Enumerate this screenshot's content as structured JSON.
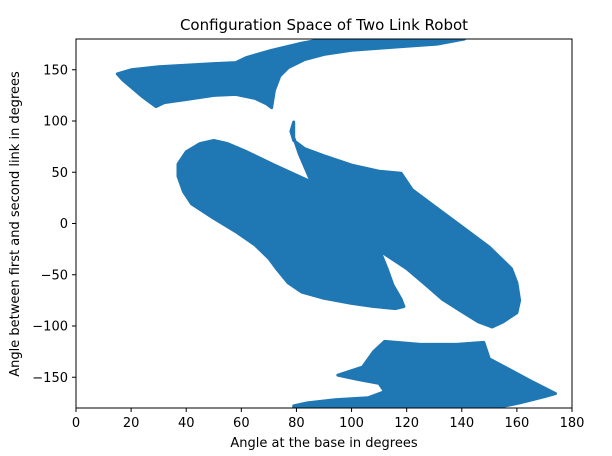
{
  "chart_data": {
    "type": "scatter",
    "title": "Configuration Space of Two Link Robot",
    "xlabel": "Angle at the base in degrees",
    "ylabel": "Angle between first and second link in degrees",
    "xlim": [
      0,
      180
    ],
    "ylim": [
      -180,
      180
    ],
    "xticks": [
      0,
      20,
      40,
      60,
      80,
      100,
      120,
      140,
      160,
      180
    ],
    "yticks": [
      -150,
      -100,
      -50,
      0,
      50,
      100,
      150
    ],
    "grid": false,
    "color": "#1f77b4",
    "series": [
      {
        "region": "top-band",
        "points": [
          [
            15,
            146
          ],
          [
            20,
            150
          ],
          [
            30,
            153
          ],
          [
            50,
            156
          ],
          [
            58,
            157
          ],
          [
            62,
            162
          ],
          [
            71,
            169
          ],
          [
            82,
            176
          ],
          [
            90,
            180
          ],
          [
            141,
            180
          ],
          [
            131,
            175
          ],
          [
            120,
            173
          ],
          [
            110,
            171
          ],
          [
            100,
            169
          ],
          [
            90,
            165
          ],
          [
            83,
            160
          ],
          [
            77,
            152
          ],
          [
            74,
            144
          ],
          [
            72,
            130
          ],
          [
            71,
            113
          ],
          [
            69,
            117
          ],
          [
            65,
            122
          ],
          [
            58,
            126
          ],
          [
            50,
            125
          ],
          [
            40,
            121
          ],
          [
            32,
            118
          ],
          [
            29,
            114
          ],
          [
            24,
            124
          ],
          [
            17,
            140
          ]
        ]
      },
      {
        "region": "middle-left",
        "points": [
          [
            37,
            46
          ],
          [
            37,
            58
          ],
          [
            40,
            70
          ],
          [
            45,
            78
          ],
          [
            50,
            81
          ],
          [
            55,
            78
          ],
          [
            62,
            70
          ],
          [
            72,
            57
          ],
          [
            85,
            41
          ],
          [
            95,
            25
          ],
          [
            105,
            5
          ],
          [
            110,
            -25
          ],
          [
            113,
            -45
          ],
          [
            115,
            -60
          ],
          [
            118,
            -74
          ],
          [
            119,
            -81
          ],
          [
            116,
            -83
          ],
          [
            108,
            -81
          ],
          [
            100,
            -78
          ],
          [
            90,
            -73
          ],
          [
            82,
            -67
          ],
          [
            77,
            -58
          ],
          [
            73,
            -45
          ],
          [
            70,
            -34
          ],
          [
            65,
            -21
          ],
          [
            58,
            -8
          ],
          [
            50,
            5
          ],
          [
            42,
            19
          ],
          [
            39,
            31
          ]
        ]
      },
      {
        "region": "middle-right",
        "points": [
          [
            79,
            99
          ],
          [
            78,
            90
          ],
          [
            79,
            81
          ],
          [
            83,
            73
          ],
          [
            90,
            66
          ],
          [
            100,
            57
          ],
          [
            110,
            51
          ],
          [
            118,
            49
          ],
          [
            122,
            33
          ],
          [
            132,
            13
          ],
          [
            140,
            -3
          ],
          [
            150,
            -23
          ],
          [
            158,
            -44
          ],
          [
            160,
            -58
          ],
          [
            161,
            -75
          ],
          [
            160,
            -87
          ],
          [
            155,
            -96
          ],
          [
            151,
            -101
          ],
          [
            146,
            -96
          ],
          [
            140,
            -86
          ],
          [
            133,
            -74
          ],
          [
            127,
            -60
          ],
          [
            120,
            -44
          ],
          [
            111,
            -28
          ],
          [
            102,
            -11
          ],
          [
            95,
            6
          ],
          [
            90,
            23
          ],
          [
            85,
            43
          ],
          [
            81,
            68
          ],
          [
            79,
            84
          ]
        ]
      },
      {
        "region": "bottom-band",
        "points": [
          [
            79,
            -180
          ],
          [
            120,
            -180
          ],
          [
            152,
            -180
          ],
          [
            161,
            -175
          ],
          [
            170,
            -169
          ],
          [
            174,
            -166
          ],
          [
            166,
            -155
          ],
          [
            157,
            -142
          ],
          [
            150,
            -132
          ],
          [
            148,
            -116
          ],
          [
            138,
            -118
          ],
          [
            125,
            -118
          ],
          [
            112,
            -115
          ],
          [
            108,
            -125
          ],
          [
            104,
            -140
          ],
          [
            95,
            -148
          ],
          [
            102,
            -152
          ],
          [
            110,
            -156
          ],
          [
            112,
            -164
          ],
          [
            106,
            -170
          ],
          [
            94,
            -172
          ],
          [
            84,
            -175
          ],
          [
            79,
            -178
          ]
        ]
      }
    ]
  }
}
